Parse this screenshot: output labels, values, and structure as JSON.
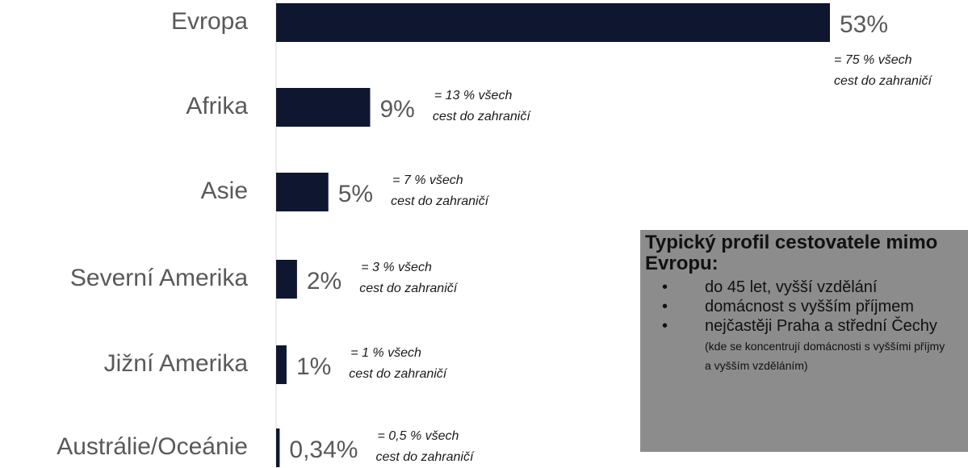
{
  "chart_data": {
    "type": "bar",
    "orientation": "horizontal",
    "categories": [
      "Evropa",
      "Afrika",
      "Asie",
      "Severní Amerika",
      "Jižní Amerika",
      "Austrálie/Oceánie"
    ],
    "values": [
      53,
      9,
      5,
      2,
      1,
      0.34
    ],
    "value_labels": [
      "53%",
      "9%",
      "5%",
      "2%",
      "1%",
      "0,34%"
    ],
    "color": "#0f1730",
    "annotations": [
      [
        "= 75 % všech",
        "cest do zahraničí"
      ],
      [
        "= 13 % všech",
        "cest do zahraničí"
      ],
      [
        "= 7 % všech",
        "cest do zahraničí"
      ],
      [
        "= 3 % všech",
        "cest do zahraničí"
      ],
      [
        "= 1 % všech",
        "cest do zahraničí"
      ],
      [
        "= 0,5 % všech",
        "cest do zahraničí"
      ]
    ]
  },
  "profile": {
    "title": "Typický profil cestovatele mimo Evropu:",
    "items": [
      {
        "text": "do 45 let, vyšší vzdělání"
      },
      {
        "text": "domácnost s vyšším příjmem"
      },
      {
        "text": "nejčastěji Praha a střední Čechy",
        "note": "(kde se koncentrují domácnosti s vyššími příjmy a vyšším vzděláním)"
      }
    ]
  }
}
